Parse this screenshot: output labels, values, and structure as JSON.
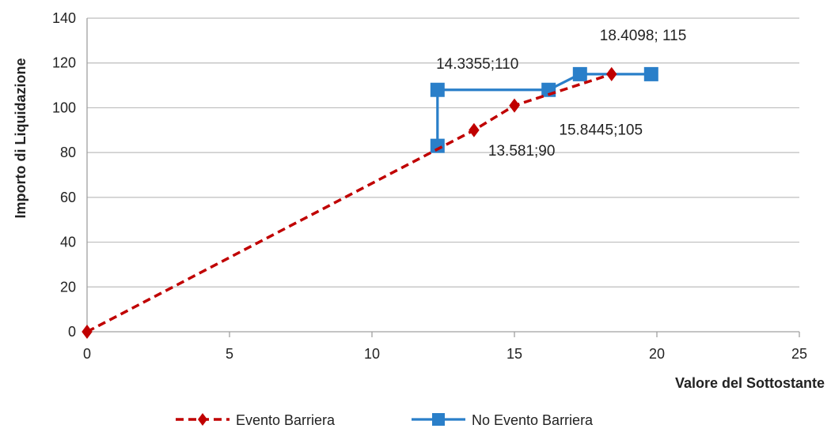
{
  "chart_data": {
    "type": "line",
    "xlabel": "Valore del Sottostante",
    "ylabel": "Importo di Liquidazione",
    "xlim": [
      0,
      25
    ],
    "ylim": [
      0,
      140
    ],
    "xticks": [
      0,
      5,
      10,
      15,
      20,
      25
    ],
    "yticks": [
      0,
      20,
      40,
      60,
      80,
      100,
      120,
      140
    ],
    "grid": "horizontal",
    "legend_position": "bottom",
    "series": [
      {
        "name": "Evento Barriera",
        "color": "#c00000",
        "line_style": "dashed",
        "marker": "diamond",
        "points": [
          [
            0,
            0
          ],
          [
            13.581,
            90
          ],
          [
            15.0,
            101
          ],
          [
            18.4098,
            115
          ]
        ]
      },
      {
        "name": "No Evento Barriera",
        "color": "#2a7fc9",
        "line_style": "solid",
        "marker": "square",
        "points": [
          [
            12.3,
            83
          ],
          [
            12.3,
            108
          ],
          [
            16.2,
            108
          ],
          [
            17.3,
            115
          ],
          [
            19.8,
            115
          ]
        ]
      }
    ],
    "annotations": [
      {
        "text": "14.3355;110",
        "x": 14.3355,
        "y": 110
      },
      {
        "text": "18.4098; 115",
        "x": 18.4098,
        "y": 115
      },
      {
        "text": "15.8445;105",
        "x": 15.8445,
        "y": 105
      },
      {
        "text": "13.581;90",
        "x": 13.581,
        "y": 90
      }
    ]
  }
}
